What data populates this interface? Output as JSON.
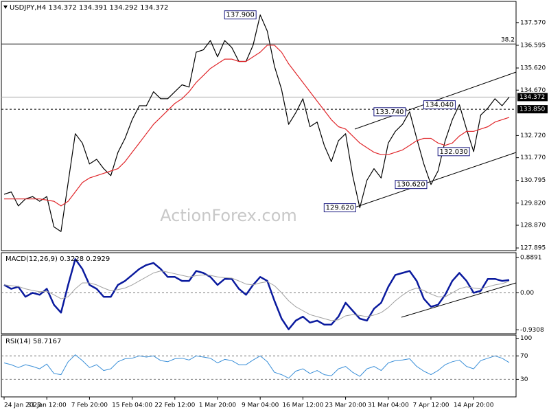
{
  "chart_data": [
    {
      "type": "line",
      "title": "USDJPY,H4  134.372 134.391 134.292 134.372",
      "watermark": "ActionForex.com",
      "ylim": [
        127.78,
        138.48
      ],
      "yticks": [
        {
          "value": 137.57,
          "label": "137.570"
        },
        136.595,
        {
          "value": 135.62,
          "label": "135.620"
        },
        {
          "value": 134.67,
          "label": "134.670"
        },
        {
          "value": 132.72,
          "label": "132.720"
        },
        {
          "value": 131.77,
          "label": "131.770"
        },
        130.795,
        {
          "value": 129.82,
          "label": "129.820"
        },
        {
          "value": 128.87,
          "label": "128.870"
        },
        127.895
      ],
      "levels": [
        {
          "value": 136.65,
          "label": "38.2"
        }
      ],
      "price_labels": [
        {
          "value": 134.372,
          "label": "134.372"
        },
        {
          "value": 133.85,
          "label": "133.850",
          "dashed": true
        }
      ],
      "annotations": [
        {
          "value": 137.9,
          "label": "137.900"
        },
        {
          "value": 133.74,
          "label": "133.740"
        },
        {
          "value": 134.04,
          "label": "134.040"
        },
        {
          "value": 132.03,
          "label": "132.030"
        },
        {
          "value": 130.62,
          "label": "130.620"
        },
        {
          "value": 129.62,
          "label": "129.620"
        }
      ],
      "series": [
        {
          "color": "#000000",
          "width": 1.2,
          "values": [
            130.2,
            130.3,
            129.7,
            130.0,
            130.1,
            129.9,
            130.1,
            128.8,
            128.6,
            130.7,
            132.8,
            132.4,
            131.5,
            131.7,
            131.3,
            131.0,
            132.0,
            132.6,
            133.4,
            134.0,
            134.0,
            134.6,
            134.3,
            134.3,
            134.6,
            134.9,
            134.8,
            136.3,
            136.4,
            136.8,
            136.1,
            136.8,
            136.5,
            135.9,
            135.9,
            136.6,
            137.9,
            137.2,
            135.7,
            134.7,
            133.2,
            133.7,
            134.3,
            133.1,
            133.3,
            132.3,
            131.6,
            132.5,
            132.8,
            131.0,
            129.62,
            130.8,
            131.3,
            130.9,
            132.4,
            132.9,
            133.2,
            133.74,
            132.6,
            131.5,
            130.62,
            131.2,
            132.5,
            133.4,
            134.04,
            133.0,
            132.03,
            133.6,
            133.9,
            134.3,
            134.0,
            134.372
          ]
        },
        {
          "color": "#e0262a",
          "width": 1.2,
          "values": [
            130.0,
            130.0,
            130.0,
            130.0,
            130.0,
            130.0,
            129.95,
            129.9,
            129.7,
            129.9,
            130.3,
            130.7,
            130.9,
            131.0,
            131.1,
            131.2,
            131.3,
            131.6,
            132.0,
            132.4,
            132.8,
            133.2,
            133.5,
            133.8,
            134.1,
            134.3,
            134.6,
            135.0,
            135.3,
            135.6,
            135.8,
            136.0,
            136.0,
            135.9,
            135.9,
            136.1,
            136.3,
            136.6,
            136.6,
            136.3,
            135.8,
            135.4,
            135.0,
            134.6,
            134.2,
            133.8,
            133.4,
            133.1,
            133.0,
            132.7,
            132.4,
            132.2,
            132.0,
            131.9,
            131.9,
            132.0,
            132.1,
            132.3,
            132.5,
            132.6,
            132.6,
            132.4,
            132.3,
            132.4,
            132.7,
            132.9,
            132.9,
            133.0,
            133.1,
            133.3,
            133.4,
            133.5
          ]
        }
      ]
    },
    {
      "type": "line",
      "title": "MACD(12,26,9) 0.3228 0.2929",
      "ylim": [
        -1.03,
        1.01
      ],
      "yticks": [
        0.8891,
        {
          "value": 0,
          "label": "0.00"
        },
        -0.9308
      ],
      "levels": [
        0
      ],
      "series": [
        {
          "color": "#0a1a9e",
          "width": 2.5,
          "values": [
            0.2,
            0.1,
            0.15,
            -0.1,
            0.0,
            -0.05,
            0.1,
            -0.3,
            -0.5,
            0.2,
            0.85,
            0.6,
            0.2,
            0.1,
            -0.1,
            -0.1,
            0.2,
            0.3,
            0.45,
            0.6,
            0.7,
            0.75,
            0.6,
            0.4,
            0.4,
            0.3,
            0.3,
            0.55,
            0.5,
            0.4,
            0.2,
            0.35,
            0.35,
            0.1,
            -0.05,
            0.2,
            0.4,
            0.3,
            -0.2,
            -0.65,
            -0.92,
            -0.7,
            -0.6,
            -0.75,
            -0.7,
            -0.8,
            -0.8,
            -0.6,
            -0.25,
            -0.45,
            -0.65,
            -0.7,
            -0.4,
            -0.25,
            0.15,
            0.45,
            0.5,
            0.55,
            0.3,
            -0.15,
            -0.35,
            -0.3,
            -0.05,
            0.3,
            0.5,
            0.3,
            0.0,
            0.05,
            0.35,
            0.35,
            0.3,
            0.3228
          ]
        },
        {
          "color": "#a0a0a0",
          "width": 1,
          "values": [
            0.2,
            0.18,
            0.16,
            0.1,
            0.06,
            0.03,
            0.04,
            -0.05,
            -0.15,
            -0.1,
            0.1,
            0.25,
            0.25,
            0.2,
            0.12,
            0.05,
            0.08,
            0.12,
            0.2,
            0.3,
            0.4,
            0.5,
            0.55,
            0.52,
            0.48,
            0.44,
            0.4,
            0.43,
            0.45,
            0.44,
            0.4,
            0.38,
            0.37,
            0.3,
            0.22,
            0.2,
            0.25,
            0.28,
            0.18,
            0.0,
            -0.2,
            -0.35,
            -0.45,
            -0.55,
            -0.6,
            -0.65,
            -0.7,
            -0.68,
            -0.58,
            -0.55,
            -0.57,
            -0.6,
            -0.56,
            -0.5,
            -0.37,
            -0.2,
            -0.06,
            0.06,
            0.12,
            0.06,
            -0.03,
            -0.1,
            -0.1,
            0.0,
            0.1,
            0.15,
            0.12,
            0.1,
            0.15,
            0.2,
            0.23,
            0.2929
          ]
        }
      ]
    },
    {
      "type": "line",
      "title": "RSI(14) 58.7167",
      "ylim": [
        0,
        105.5
      ],
      "yticks": [
        100,
        70,
        30
      ],
      "levels": [
        70,
        30
      ],
      "categories": [
        "24 Jan 2023",
        null,
        null,
        null,
        null,
        null,
        "31 Jan 12:00",
        null,
        null,
        null,
        null,
        null,
        "7 Feb 20:00",
        null,
        null,
        null,
        null,
        null,
        "15 Feb 04:00",
        null,
        null,
        null,
        null,
        null,
        "22 Feb 12:00",
        null,
        null,
        null,
        null,
        null,
        "1 Mar 20:00",
        null,
        null,
        null,
        null,
        null,
        "9 Mar 04:00",
        null,
        null,
        null,
        null,
        null,
        "16 Mar 12:00",
        null,
        null,
        null,
        null,
        null,
        "23 Mar 20:00",
        null,
        null,
        null,
        null,
        null,
        "31 Mar 04:00",
        null,
        null,
        null,
        null,
        null,
        "7 Apr 12:00",
        null,
        null,
        null,
        null,
        null,
        "14 Apr 20:00",
        null,
        null,
        null,
        null,
        null
      ],
      "series": [
        {
          "color": "#3a8fd8",
          "width": 1,
          "values": [
            58,
            55,
            50,
            55,
            52,
            48,
            56,
            40,
            38,
            60,
            72,
            62,
            50,
            55,
            45,
            48,
            60,
            65,
            66,
            70,
            68,
            70,
            62,
            60,
            65,
            66,
            63,
            70,
            68,
            66,
            58,
            64,
            62,
            55,
            55,
            63,
            70,
            60,
            42,
            38,
            32,
            44,
            48,
            40,
            45,
            38,
            36,
            48,
            52,
            42,
            35,
            48,
            52,
            45,
            58,
            62,
            63,
            65,
            52,
            44,
            38,
            45,
            55,
            60,
            63,
            52,
            48,
            62,
            66,
            70,
            66,
            58.7167
          ]
        }
      ]
    }
  ]
}
